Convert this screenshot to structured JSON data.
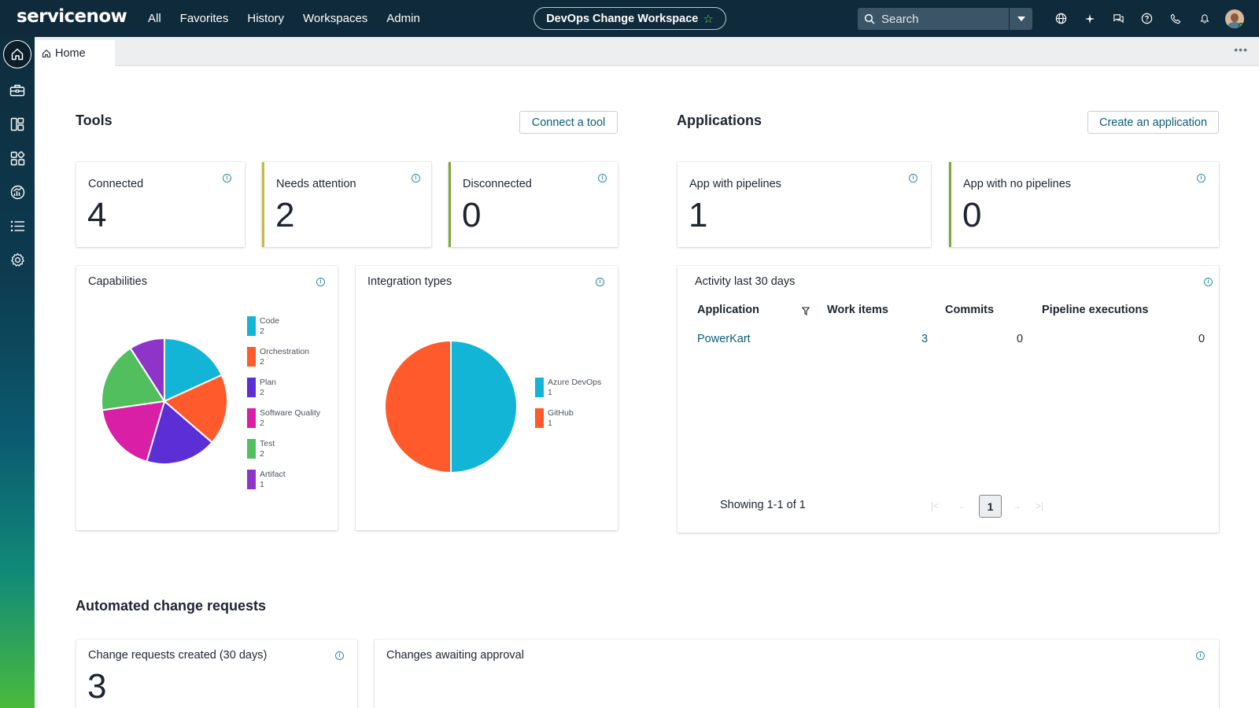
{
  "brand": {
    "logo_text_a": "serviceno",
    "logo_text_b": "w"
  },
  "nav": {
    "items": [
      "All",
      "Favorites",
      "History",
      "Workspaces",
      "Admin"
    ]
  },
  "workspace": {
    "title": "DevOps Change Workspace"
  },
  "search": {
    "placeholder": "Search"
  },
  "tabs": {
    "home": "Home"
  },
  "tools": {
    "title": "Tools",
    "connect_button": "Connect a tool",
    "cards": [
      {
        "label": "Connected",
        "value": "4"
      },
      {
        "label": "Needs attention",
        "value": "2"
      },
      {
        "label": "Disconnected",
        "value": "0"
      }
    ]
  },
  "applications": {
    "title": "Applications",
    "create_button": "Create an application",
    "cards": [
      {
        "label": "App with pipelines",
        "value": "1"
      },
      {
        "label": "App with no pipelines",
        "value": "0"
      }
    ]
  },
  "capabilities": {
    "title": "Capabilities",
    "legend": [
      {
        "name": "Code",
        "count": "2"
      },
      {
        "name": "Orchestration",
        "count": "2"
      },
      {
        "name": "Plan",
        "count": "2"
      },
      {
        "name": "Software Quality",
        "count": "2"
      },
      {
        "name": "Test",
        "count": "2"
      },
      {
        "name": "Artifact",
        "count": "1"
      }
    ]
  },
  "integration_types": {
    "title": "Integration types",
    "legend": [
      {
        "name": "Azure DevOps",
        "count": "1"
      },
      {
        "name": "GitHub",
        "count": "1"
      }
    ]
  },
  "activity": {
    "title": "Activity last 30 days",
    "columns": [
      "Application",
      "Work items",
      "Commits",
      "Pipeline executions"
    ],
    "rows": [
      {
        "application": "PowerKart",
        "work_items": "3",
        "commits": "0",
        "pipeline_executions": "0"
      }
    ],
    "showing": "Showing 1-1 of 1",
    "page": "1"
  },
  "automated": {
    "title": "Automated change requests",
    "created_label": "Change requests created (30 days)",
    "created_value": "3",
    "awaiting_label": "Changes awaiting approval"
  },
  "colors": {
    "code": "#12b5d6",
    "orchestration": "#ff5a2c",
    "plan": "#5b2ed6",
    "software_quality": "#d91fa6",
    "test": "#52bf5f",
    "artifact": "#8e35c8"
  },
  "chart_data": [
    {
      "type": "pie",
      "title": "Capabilities",
      "categories": [
        "Code",
        "Orchestration",
        "Plan",
        "Software Quality",
        "Test",
        "Artifact"
      ],
      "values": [
        2,
        2,
        2,
        2,
        2,
        1
      ]
    },
    {
      "type": "pie",
      "title": "Integration types",
      "categories": [
        "Azure DevOps",
        "GitHub"
      ],
      "values": [
        1,
        1
      ]
    }
  ]
}
